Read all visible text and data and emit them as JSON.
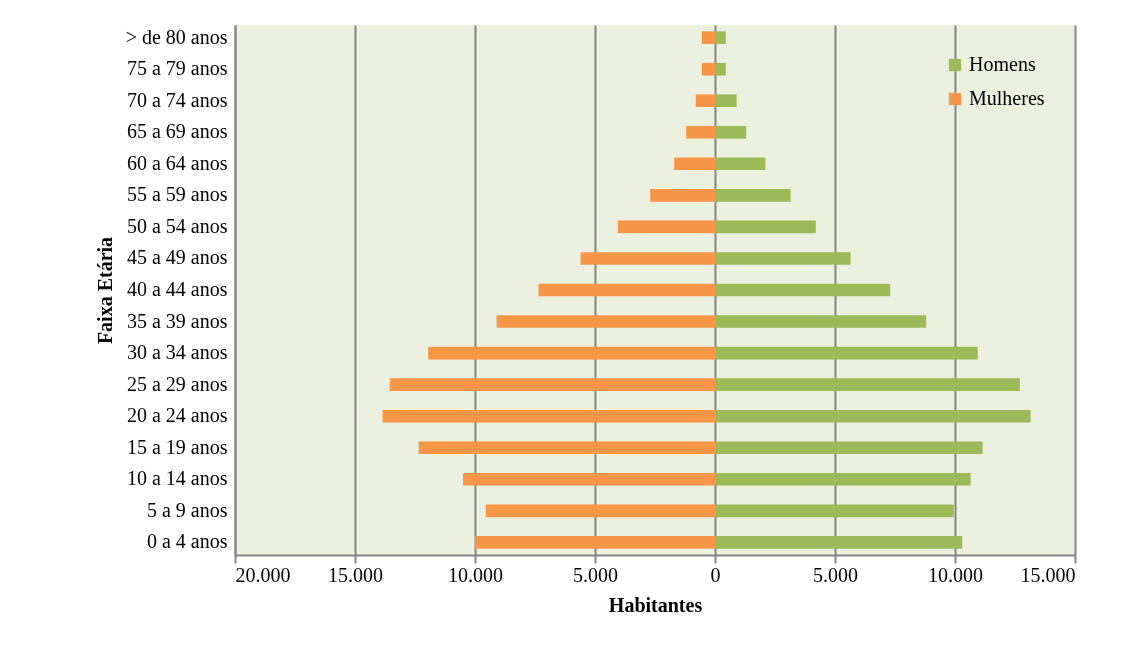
{
  "chart_data": {
    "type": "bar",
    "orientation": "horizontal",
    "xlabel": "Habitantes",
    "ylabel": "Faixa Etária",
    "categories": [
      "> de 80 anos",
      "75 a 79 anos",
      "70 a 74 anos",
      "65 a 69 anos",
      "60 a 64 anos",
      "55 a 59 anos",
      "50 a 54 anos",
      "45 a 49 anos",
      "40 a 44 anos",
      "35 a 39 anos",
      "30 a 34 anos",
      "25 a 29 anos",
      "20 a 24 anos",
      "15 a 19 anos",
      "10 a 14 anos",
      "5 a 9 anos",
      "0 a 4 anos"
    ],
    "series": [
      {
        "name": "Homens",
        "color": "#9bbb59",
        "values": [
          450,
          450,
          900,
          1300,
          2100,
          3150,
          4200,
          5650,
          7300,
          8800,
          10950,
          12700,
          13150,
          11150,
          10650,
          9950,
          10300
        ]
      },
      {
        "name": "Mulheres",
        "color": "#f79646",
        "values": [
          -550,
          -550,
          -800,
          -1200,
          -1700,
          -2700,
          -4050,
          -5600,
          -7350,
          -9100,
          -11950,
          -13550,
          -13850,
          -12350,
          -10500,
          -9550,
          -10000
        ]
      }
    ],
    "xlim": [
      -20000,
      15000
    ],
    "xticks": [
      {
        "value": -20000,
        "label": "20.000"
      },
      {
        "value": -15000,
        "label": "15.000"
      },
      {
        "value": -10000,
        "label": "10.000"
      },
      {
        "value": -5000,
        "label": "5.000"
      },
      0,
      {
        "value": 5000,
        "label": "5.000"
      },
      {
        "value": 10000,
        "label": "10.000"
      },
      {
        "value": 15000,
        "label": "15.000"
      }
    ],
    "grid": "x",
    "legend": "top right",
    "stacked": true
  }
}
